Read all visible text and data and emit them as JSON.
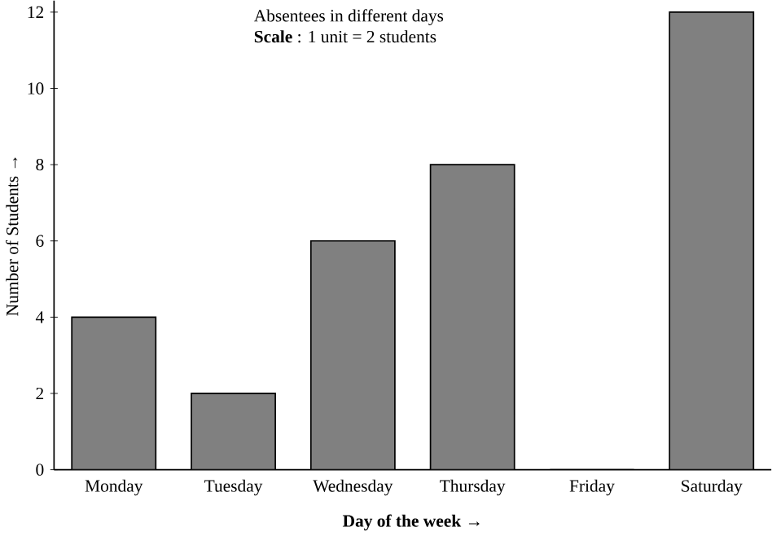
{
  "chart_data": {
    "type": "bar",
    "title": "Absentees in different days",
    "subtitle": "**Scale** : 1 unit = 2 students",
    "xlabel": "Day of the week →",
    "ylabel": "Number of Students →",
    "categories": [
      "Monday",
      "Tuesday",
      "Wednesday",
      "Thursday",
      "Friday",
      "Saturday"
    ],
    "values": [
      4,
      2,
      6,
      8,
      0,
      12
    ],
    "color": "#808080",
    "ylim": [
      0,
      12.3
    ],
    "yticks": [
      0,
      2,
      4,
      6,
      8,
      10,
      12
    ],
    "grid": false
  }
}
